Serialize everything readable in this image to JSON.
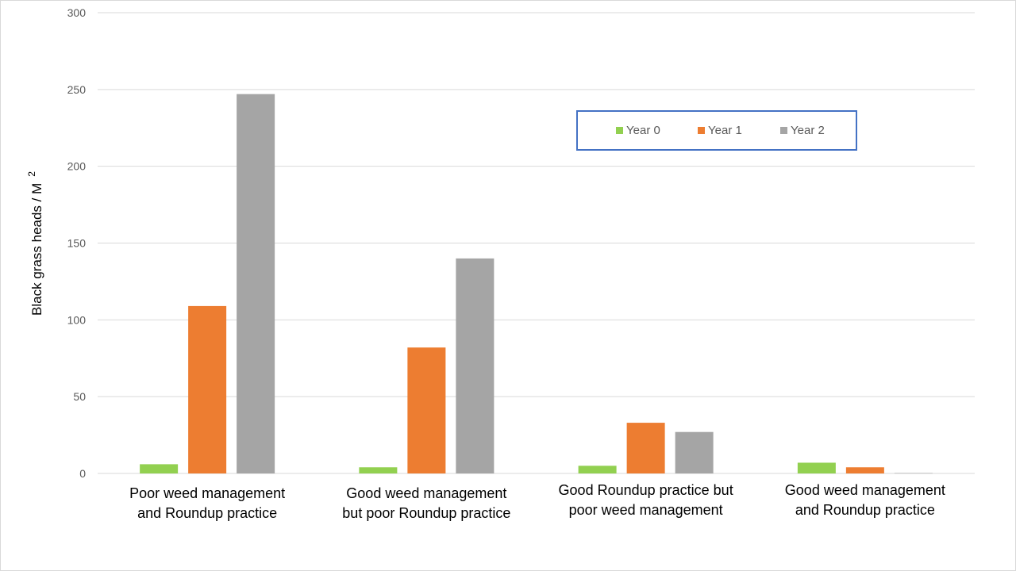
{
  "chart_data": {
    "type": "bar",
    "title": "",
    "xlabel": "",
    "ylabel": "Black grass heads / M",
    "ylabel_sup": "2",
    "ylim": [
      0,
      300
    ],
    "yticks": [
      0,
      50,
      100,
      150,
      200,
      250,
      300
    ],
    "grid": true,
    "legend_position": "top-right",
    "categories": [
      [
        "Poor weed management",
        "and Roundup practice"
      ],
      [
        "Good weed management",
        "but poor Roundup practice"
      ],
      [
        "Good Roundup practice but",
        "poor weed management"
      ],
      [
        "Good weed management",
        "and Roundup practice"
      ]
    ],
    "series": [
      {
        "name": "Year 0",
        "color": "#92d050",
        "values": [
          6,
          4,
          5,
          7
        ]
      },
      {
        "name": "Year 1",
        "color": "#ed7d31",
        "values": [
          109,
          82,
          33,
          4
        ]
      },
      {
        "name": "Year 2",
        "color": "#a5a5a5",
        "values": [
          247,
          140,
          27,
          0.3
        ]
      }
    ],
    "legend_border_color": "#4472c4",
    "gridline_color": "#d9d9d9"
  }
}
